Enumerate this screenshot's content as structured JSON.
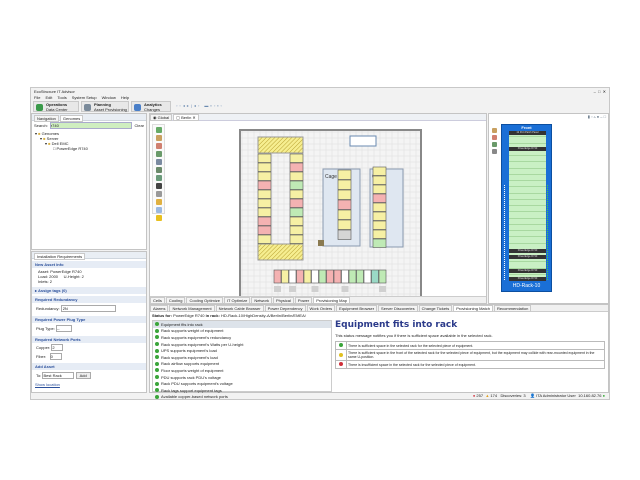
{
  "window": {
    "title": "EcoStruxure IT Advisor"
  },
  "menu": [
    "File",
    "Edit",
    "Tools",
    "System Setup",
    "Window",
    "Help"
  ],
  "perspectives": [
    {
      "title": "Operations",
      "subtitle": "Data Center",
      "color": "#3a9a4a"
    },
    {
      "title": "Planning",
      "subtitle": "Asset Provisioning",
      "color": "#7a8a9a"
    },
    {
      "title": "Analytics",
      "subtitle": "Changes",
      "color": "#4a7fc8"
    }
  ],
  "left": {
    "tabs": [
      "Navigation",
      "Genomes"
    ],
    "search_label": "Search:",
    "search_value": "r740",
    "clear": "Clear",
    "tree": [
      "Genomes",
      "Server",
      "Dell EMC",
      "PowerEdge R740"
    ]
  },
  "install": {
    "title": "Installation Requirements",
    "new_asset": "New Asset Info",
    "asset": "Asset: PowerEdge R740",
    "load": "Load: 2000",
    "uheight": "U-Height: 2",
    "inlets": "Inlets: 2",
    "assign_tags": "Assign tags (0)",
    "redundancy_h": "Required Redundancy",
    "redundancy_label": "Redundancy:",
    "redundancy_value": "2N",
    "plug_h": "Required Power Plug Type",
    "plug_label": "Plug Type:",
    "plug_value": "--",
    "ports_h": "Required Network Ports",
    "copper_label": "Copper:",
    "copper_value": "2",
    "fiber_label": "Fiber:",
    "fiber_value": "0",
    "add_h": "Add Asset",
    "to_label": "To:",
    "to_value": "Best Rack",
    "add_btn": "Add",
    "show_location": "Show location"
  },
  "editor": {
    "tabs": [
      "Global",
      "Berlin"
    ],
    "view_tabs": [
      "Cells",
      "Cooling",
      "Cooling Optimize",
      "IT Optimize",
      "Network",
      "Physical",
      "Power",
      "Provisioning Map"
    ],
    "floor": {
      "cage_labels": [
        "Cage",
        "Cage"
      ],
      "left_col": [
        "y",
        "y",
        "y",
        "r",
        "y",
        "y",
        "y",
        "r",
        "r",
        "y"
      ],
      "right_col": [
        "y",
        "r",
        "y",
        "g",
        "y",
        "r",
        "g",
        "y",
        "y",
        "y"
      ],
      "mid_col": [
        "y",
        "y",
        "y",
        "r",
        "y",
        "y",
        "s"
      ],
      "right2_col": [
        "y",
        "y",
        "y",
        "r",
        "y",
        "y",
        "y",
        "y",
        "g"
      ],
      "bottom_row": [
        "r",
        "y",
        "w",
        "r",
        "y",
        "w",
        "g",
        "r",
        "r",
        "w",
        "g",
        "g",
        "w",
        "t",
        "g"
      ]
    },
    "rack_colors": {
      "y": "#f6f0a4",
      "r": "#f4b2b2",
      "g": "#bfeab5",
      "w": "#ffffff",
      "t": "#9ad9c6",
      "s": "#d5d5d5"
    }
  },
  "rack": {
    "face": "Front",
    "name": "HD-Rack-10",
    "top_device": "12 Port Patch Panel",
    "devices": [
      "PowerEdge R740",
      "PowerEdge R740",
      "PowerEdge R740",
      "PowerEdge R740",
      "PowerEdge R740"
    ],
    "color": "#1a6fd6"
  },
  "bottom": {
    "tabs": [
      "Alarms",
      "Network Management",
      "Network Cable Browser",
      "Power Dependency",
      "Work Orders",
      "Equipment Browser",
      "Server Discoveries",
      "Change Tickets",
      "Provisioning Match",
      "Recommendation"
    ],
    "status_prefix": "Status for:",
    "status_asset": "PowerEdge R740",
    "status_in": "in rack:",
    "status_rack": "HD-Rack-10/HighDensity-A/Berlin/Berlin/EMEA/",
    "checks": [
      "Equipment fits into rack",
      "Rack supports weight of equipment",
      "Rack supports equipment's redundancy",
      "Rack supports equipment's Watts per U-height",
      "UPS supports equipment's load",
      "Rack supports equipment's load",
      "Rack airflow supports equipment",
      "Floor supports weight of equipment",
      "PDU supports rack PDU's voltage",
      "Rack PDU supports equipment's voltage",
      "Rack tags support equipment tags",
      "Available copper-based network ports"
    ],
    "detail_title": "Equipment fits into rack",
    "detail_desc": "This status message notifies you if there is sufficient space available in the selected rack.",
    "legend": [
      {
        "color": "#3aa53a",
        "text": "There is sufficient space in the selected rack for the selected piece of equipment."
      },
      {
        "color": "#e0c020",
        "text": "There is sufficient space in the front of the selected rack for the selected piece of equipment, but the equipment may collide with rear-mounted equipment in the same U-position."
      },
      {
        "color": "#d0303a",
        "text": "There is insufficient space in the selected rack for the selected piece of equipment."
      }
    ]
  },
  "statusbar": {
    "errors": "257",
    "warnings": "174",
    "discoveries": "Discoveries: 3",
    "user": "ITA Administrator User",
    "ip": "10.160.82.76"
  }
}
